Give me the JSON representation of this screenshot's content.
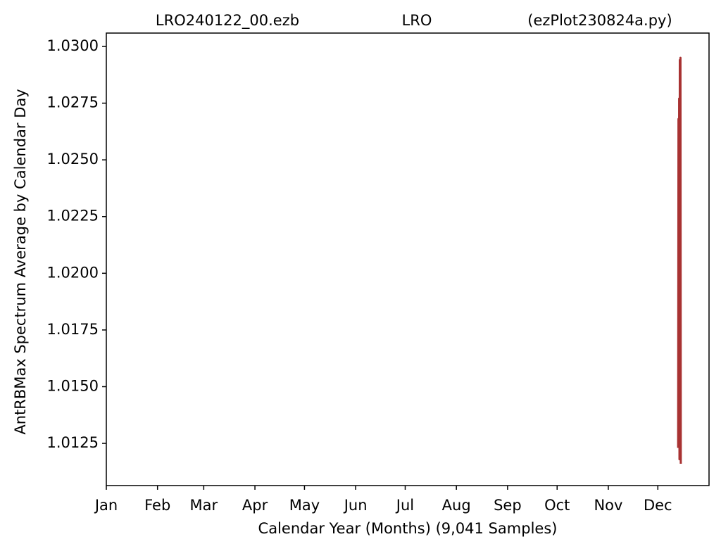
{
  "chart_data": {
    "type": "line",
    "titles": [
      "LRO240122_00.ezb",
      "LRO",
      "(ezPlot230824a.py)"
    ],
    "xlabel": "Calendar Year (Months) (9,041 Samples)",
    "ylabel": "AntRBMax Spectrum Average by Calendar Day",
    "x": [
      346.3,
      346.5,
      346.7,
      346.9,
      347.1,
      347.3,
      347.5,
      347.7,
      347.9
    ],
    "series": [
      {
        "name": "AntRBMax",
        "color": "#a83232",
        "values": [
          1.0123,
          1.0268,
          1.0135,
          1.0277,
          1.0118,
          1.0294,
          1.0128,
          1.0295,
          1.0116
        ]
      }
    ],
    "xlim": [
      0,
      365
    ],
    "ylim": [
      1.01064,
      1.03059
    ],
    "xticks": [
      {
        "value": 0,
        "label": "Jan"
      },
      {
        "value": 31,
        "label": "Feb"
      },
      {
        "value": 59,
        "label": "Mar"
      },
      {
        "value": 90,
        "label": "Apr"
      },
      {
        "value": 120,
        "label": "May"
      },
      {
        "value": 151,
        "label": "Jun"
      },
      {
        "value": 181,
        "label": "Jul"
      },
      {
        "value": 212,
        "label": "Aug"
      },
      {
        "value": 243,
        "label": "Sep"
      },
      {
        "value": 273,
        "label": "Oct"
      },
      {
        "value": 304,
        "label": "Nov"
      },
      {
        "value": 334,
        "label": "Dec"
      }
    ],
    "yticks": [
      1.0125,
      {
        "value": 1.015,
        "label": "1.0150"
      },
      1.0175,
      {
        "value": 1.02,
        "label": "1.0200"
      },
      1.0225,
      {
        "value": 1.025,
        "label": "1.0250"
      },
      1.0275,
      {
        "value": 1.03,
        "label": "1.0300"
      }
    ],
    "grid": false
  }
}
